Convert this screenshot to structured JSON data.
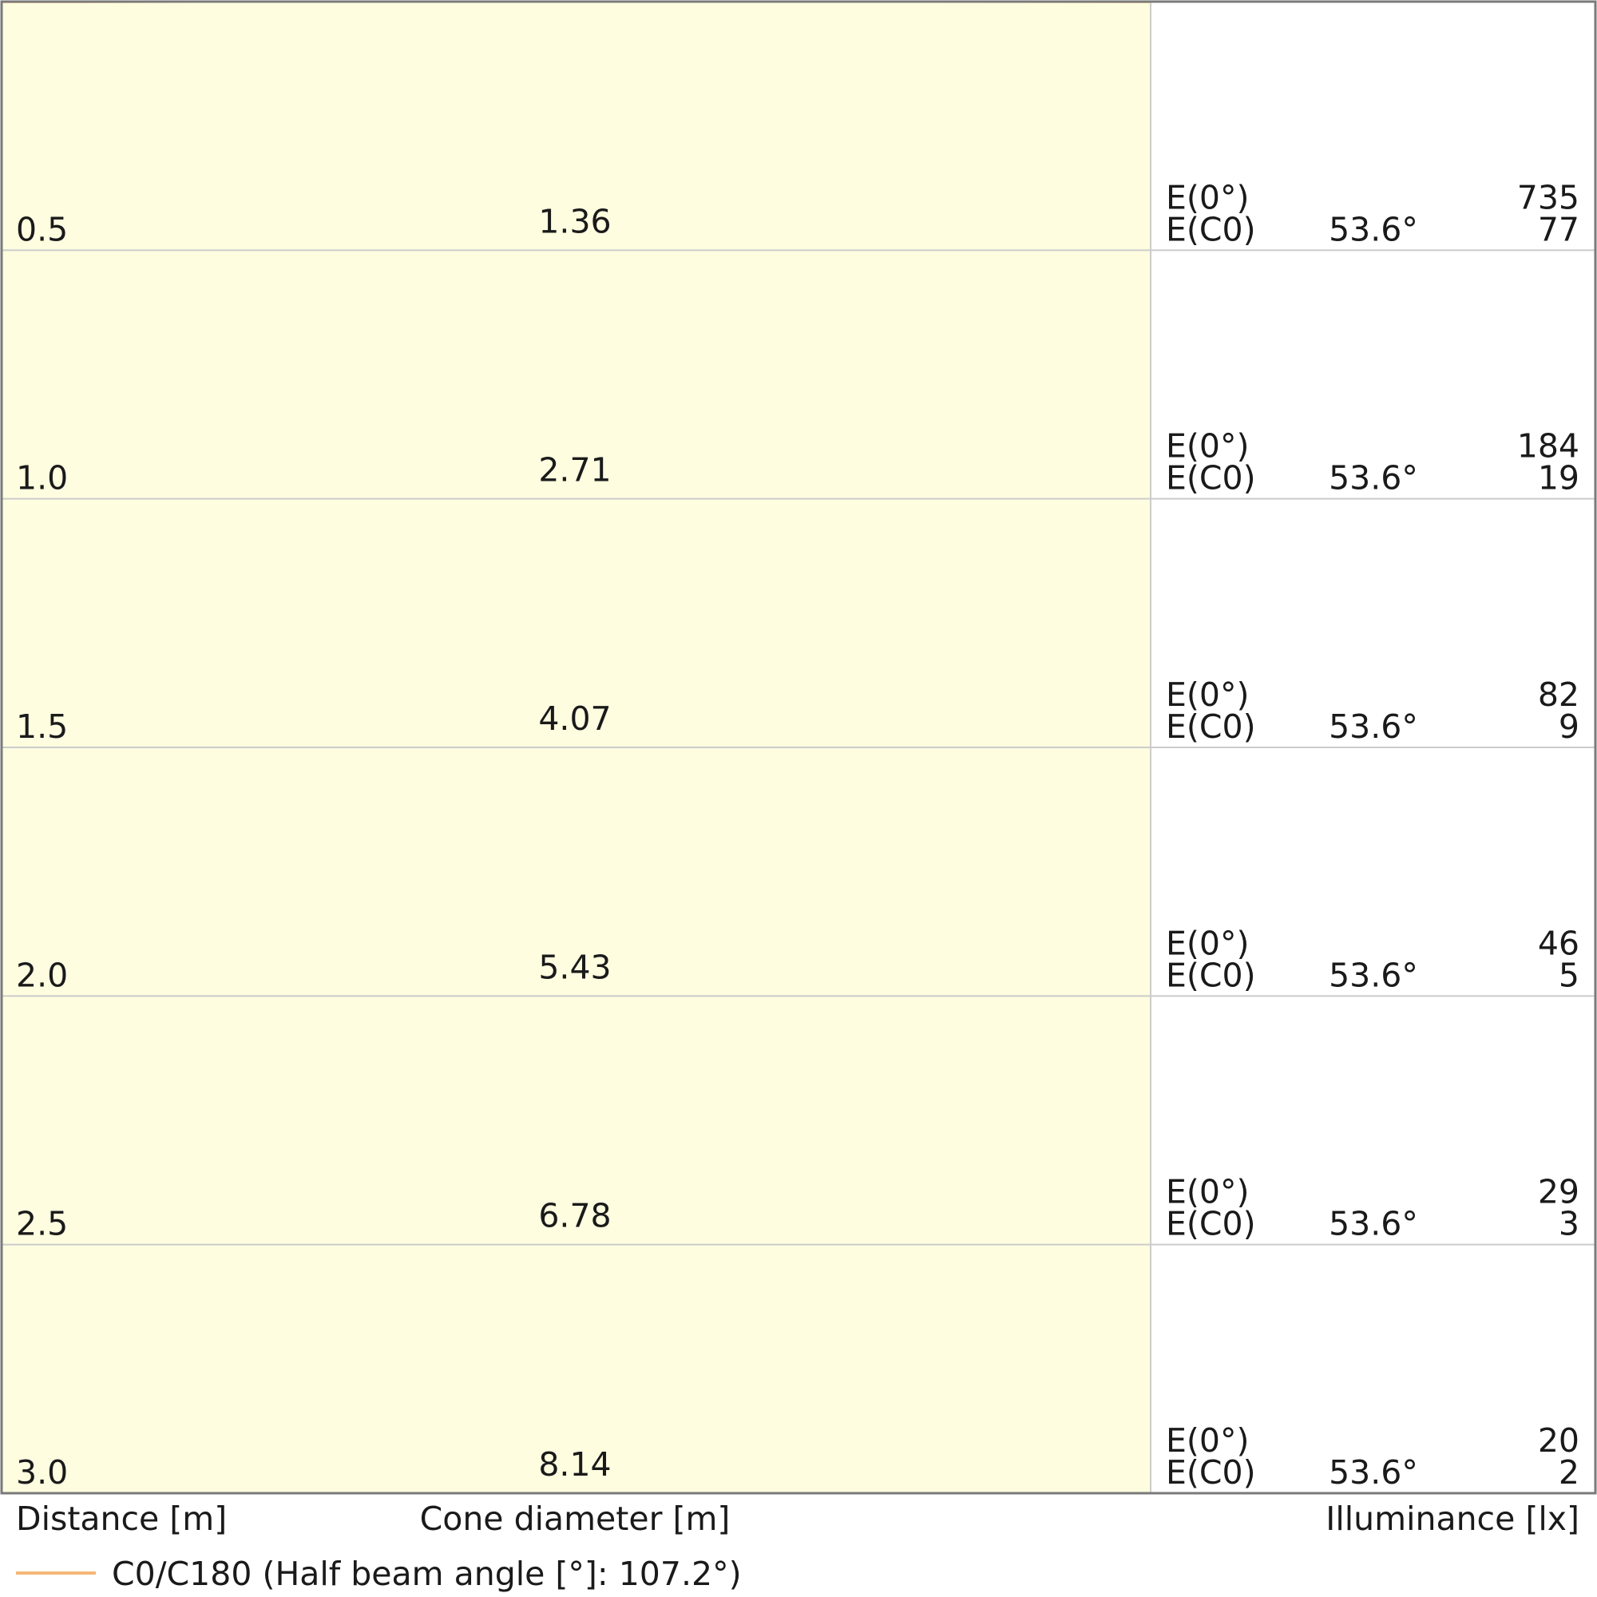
{
  "chart_data": {
    "type": "area",
    "title": "",
    "distance_label": "Distance [m]",
    "diameter_label": "Cone diameter [m]",
    "illuminance_label": "Illuminance [lx]",
    "legend": [
      {
        "name": "C0/C180 (Half beam angle [°]: 107.2°)",
        "color": "#f5b877"
      }
    ],
    "half_beam_angle_deg": 107.2,
    "fill_color": "#fefde0",
    "line_color": "#f5b877",
    "grid": true,
    "legend_position": "bottom-left",
    "rows": [
      {
        "distance": "0.5",
        "diameter": "1.36",
        "e0_label": "E(0°)",
        "ec0_label": "E(C0)",
        "angle": "53.6°",
        "e0": "735",
        "ec0": "77"
      },
      {
        "distance": "1.0",
        "diameter": "2.71",
        "e0_label": "E(0°)",
        "ec0_label": "E(C0)",
        "angle": "53.6°",
        "e0": "184",
        "ec0": "19"
      },
      {
        "distance": "1.5",
        "diameter": "4.07",
        "e0_label": "E(0°)",
        "ec0_label": "E(C0)",
        "angle": "53.6°",
        "e0": "82",
        "ec0": "9"
      },
      {
        "distance": "2.0",
        "diameter": "5.43",
        "e0_label": "E(0°)",
        "ec0_label": "E(C0)",
        "angle": "53.6°",
        "e0": "46",
        "ec0": "5"
      },
      {
        "distance": "2.5",
        "diameter": "6.78",
        "e0_label": "E(0°)",
        "ec0_label": "E(C0)",
        "angle": "53.6°",
        "e0": "29",
        "ec0": "3"
      },
      {
        "distance": "3.0",
        "diameter": "8.14",
        "e0_label": "E(0°)",
        "ec0_label": "E(C0)",
        "angle": "53.6°",
        "e0": "20",
        "ec0": "2"
      }
    ]
  }
}
